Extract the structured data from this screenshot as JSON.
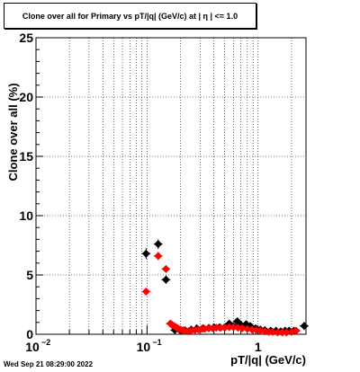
{
  "chart_data": {
    "type": "scatter",
    "title": "Clone  over all for Primary vs pT/|q| (GeV/c) at |  η  | <= 1.0",
    "xlabel": "pT/|q| (GeV/c)",
    "ylabel": "Clone  over all (%)",
    "x_scale": "log",
    "xlim": [
      0.01,
      2.7
    ],
    "ylim": [
      0,
      25
    ],
    "grid": true,
    "y_ticks": [
      0,
      5,
      10,
      15,
      20,
      25
    ],
    "y_tick_labels": [
      "0",
      "5",
      "10",
      "15",
      "20",
      "25"
    ],
    "x_ticks": [
      0.01,
      0.1,
      1
    ],
    "x_tick_labels": [
      "10",
      "10",
      "1"
    ],
    "x_tick_exponents": [
      "−2",
      "−1",
      ""
    ],
    "series": [
      {
        "color": "#000000",
        "marker": "diamond",
        "points": [
          {
            "x": 0.098,
            "y": 6.8,
            "yerr": 0.45
          },
          {
            "x": 0.126,
            "y": 7.6,
            "yerr": 0.4
          },
          {
            "x": 0.148,
            "y": 4.6,
            "yerr": 0.35
          },
          {
            "x": 0.178,
            "y": 0.35,
            "yerr": 0.1
          },
          {
            "x": 0.2,
            "y": 0.3,
            "yerr": 0.1
          },
          {
            "x": 0.22,
            "y": 0.35,
            "yerr": 0.1
          },
          {
            "x": 0.25,
            "y": 0.4,
            "yerr": 0.1
          },
          {
            "x": 0.28,
            "y": 0.5,
            "yerr": 0.1
          },
          {
            "x": 0.32,
            "y": 0.5,
            "yerr": 0.1
          },
          {
            "x": 0.36,
            "y": 0.55,
            "yerr": 0.1
          },
          {
            "x": 0.4,
            "y": 0.6,
            "yerr": 0.1
          },
          {
            "x": 0.45,
            "y": 0.6,
            "yerr": 0.1
          },
          {
            "x": 0.5,
            "y": 0.6,
            "yerr": 0.1
          },
          {
            "x": 0.55,
            "y": 0.9,
            "yerr": 0.15
          },
          {
            "x": 0.6,
            "y": 0.7,
            "yerr": 0.1
          },
          {
            "x": 0.65,
            "y": 1.1,
            "yerr": 0.2
          },
          {
            "x": 0.7,
            "y": 0.8,
            "yerr": 0.15
          },
          {
            "x": 0.78,
            "y": 0.85,
            "yerr": 0.15
          },
          {
            "x": 0.85,
            "y": 0.7,
            "yerr": 0.15
          },
          {
            "x": 0.95,
            "y": 0.5,
            "yerr": 0.1
          },
          {
            "x": 1.05,
            "y": 0.4,
            "yerr": 0.1
          },
          {
            "x": 1.15,
            "y": 0.35,
            "yerr": 0.1
          },
          {
            "x": 1.3,
            "y": 0.3,
            "yerr": 0.1
          },
          {
            "x": 1.45,
            "y": 0.3,
            "yerr": 0.1
          },
          {
            "x": 1.6,
            "y": 0.25,
            "yerr": 0.1
          },
          {
            "x": 1.75,
            "y": 0.3,
            "yerr": 0.1
          },
          {
            "x": 1.9,
            "y": 0.3,
            "yerr": 0.1
          },
          {
            "x": 2.1,
            "y": 0.3,
            "yerr": 0.1
          },
          {
            "x": 2.6,
            "y": 0.7,
            "yerr": 0.35
          }
        ]
      },
      {
        "color": "#ff0000",
        "marker": "diamond",
        "points": [
          {
            "x": 0.098,
            "y": 3.6,
            "yerr": 0.3
          },
          {
            "x": 0.126,
            "y": 6.6,
            "yerr": 0.35
          },
          {
            "x": 0.148,
            "y": 5.5,
            "yerr": 0.3
          },
          {
            "x": 0.162,
            "y": 0.9,
            "yerr": 0.1
          },
          {
            "x": 0.168,
            "y": 0.8,
            "yerr": 0.1
          },
          {
            "x": 0.175,
            "y": 0.7,
            "yerr": 0.1
          },
          {
            "x": 0.182,
            "y": 0.6,
            "yerr": 0.1
          },
          {
            "x": 0.19,
            "y": 0.5,
            "yerr": 0.1
          },
          {
            "x": 0.2,
            "y": 0.4,
            "yerr": 0.1
          },
          {
            "x": 0.21,
            "y": 0.35,
            "yerr": 0.1
          },
          {
            "x": 0.22,
            "y": 0.3,
            "yerr": 0.1
          },
          {
            "x": 0.235,
            "y": 0.25,
            "yerr": 0.1
          },
          {
            "x": 0.25,
            "y": 0.3,
            "yerr": 0.1
          },
          {
            "x": 0.27,
            "y": 0.35,
            "yerr": 0.1
          },
          {
            "x": 0.29,
            "y": 0.4,
            "yerr": 0.1
          },
          {
            "x": 0.31,
            "y": 0.45,
            "yerr": 0.1
          },
          {
            "x": 0.33,
            "y": 0.45,
            "yerr": 0.1
          },
          {
            "x": 0.36,
            "y": 0.5,
            "yerr": 0.1
          },
          {
            "x": 0.39,
            "y": 0.5,
            "yerr": 0.1
          },
          {
            "x": 0.42,
            "y": 0.55,
            "yerr": 0.1
          },
          {
            "x": 0.46,
            "y": 0.55,
            "yerr": 0.1
          },
          {
            "x": 0.5,
            "y": 0.55,
            "yerr": 0.1
          },
          {
            "x": 0.55,
            "y": 0.6,
            "yerr": 0.1
          },
          {
            "x": 0.6,
            "y": 0.6,
            "yerr": 0.1
          },
          {
            "x": 0.66,
            "y": 0.55,
            "yerr": 0.1
          },
          {
            "x": 0.72,
            "y": 0.5,
            "yerr": 0.1
          },
          {
            "x": 0.8,
            "y": 0.45,
            "yerr": 0.1
          },
          {
            "x": 0.88,
            "y": 0.4,
            "yerr": 0.1
          },
          {
            "x": 0.96,
            "y": 0.35,
            "yerr": 0.1
          },
          {
            "x": 1.05,
            "y": 0.3,
            "yerr": 0.1
          },
          {
            "x": 1.15,
            "y": 0.25,
            "yerr": 0.1
          },
          {
            "x": 1.25,
            "y": 0.2,
            "yerr": 0.1
          },
          {
            "x": 1.35,
            "y": 0.2,
            "yerr": 0.1
          },
          {
            "x": 1.5,
            "y": 0.15,
            "yerr": 0.1
          },
          {
            "x": 1.65,
            "y": 0.15,
            "yerr": 0.1
          },
          {
            "x": 1.8,
            "y": 0.15,
            "yerr": 0.1
          },
          {
            "x": 2.0,
            "y": 0.2,
            "yerr": 0.1
          },
          {
            "x": 2.2,
            "y": 0.3,
            "yerr": 0.15
          }
        ]
      }
    ]
  },
  "footer": {
    "timestamp": "Wed Sep 21 08:29:00 2022"
  }
}
